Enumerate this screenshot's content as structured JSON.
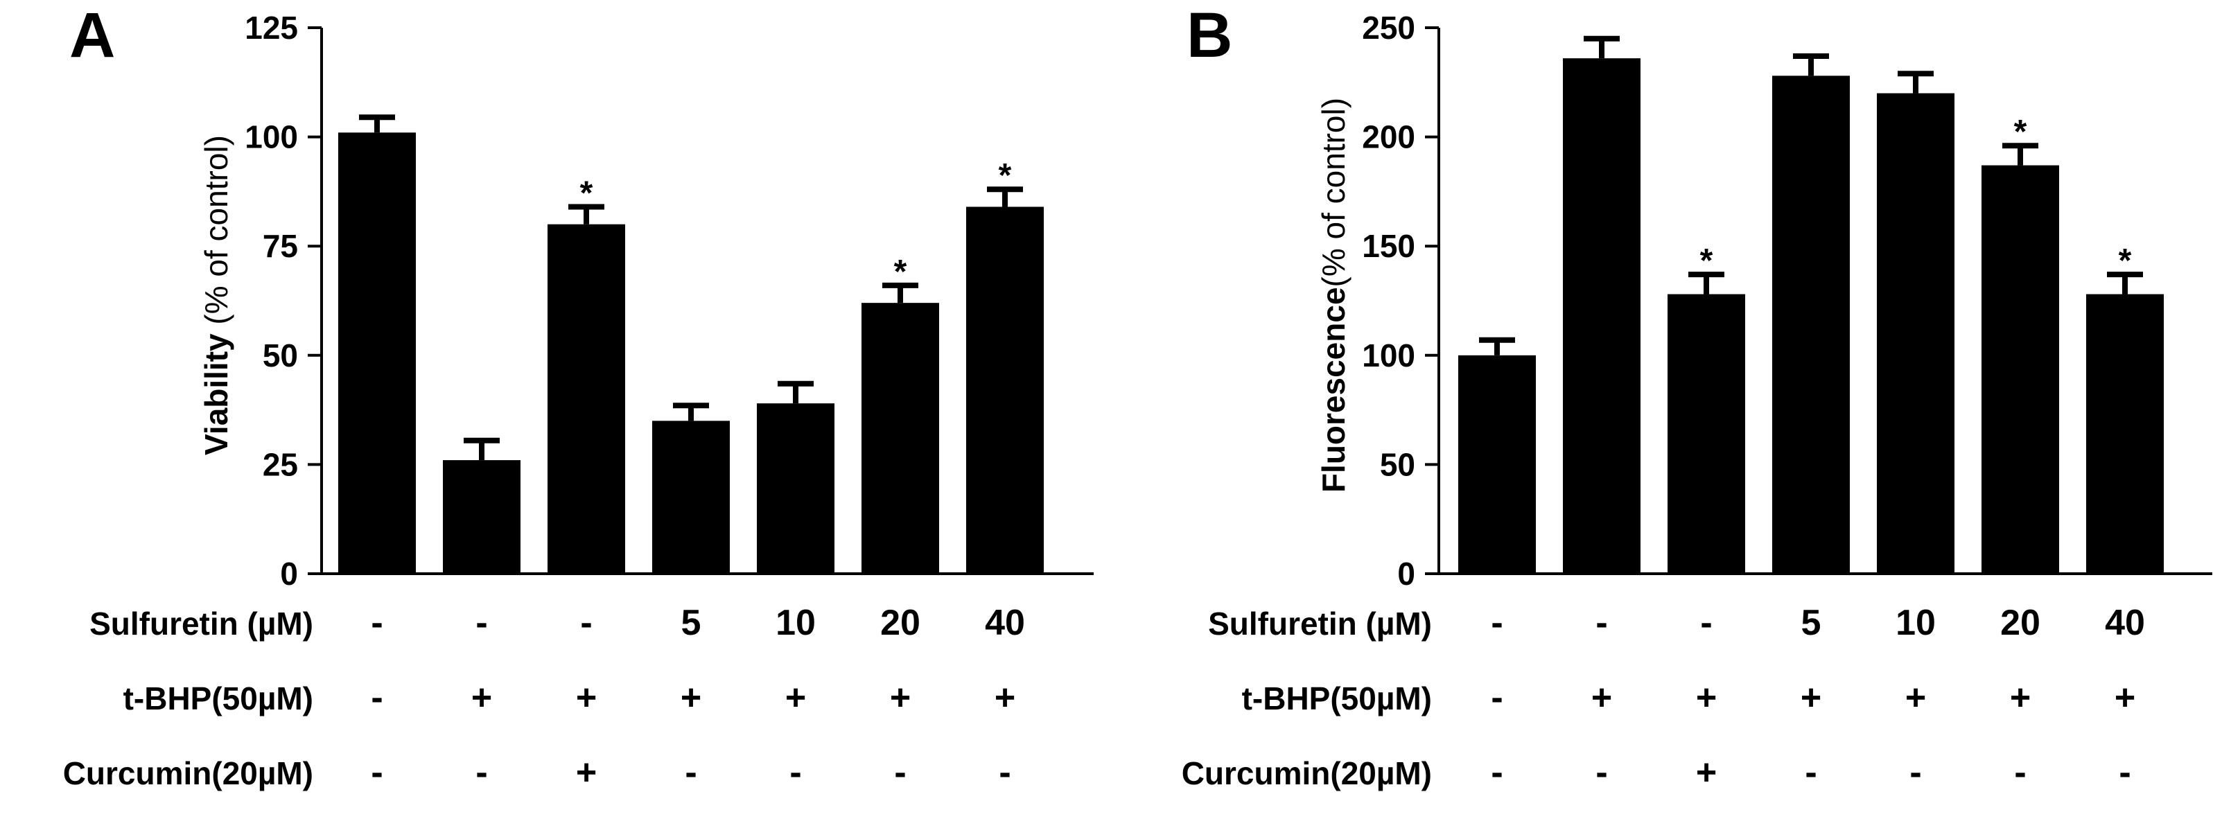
{
  "figure": {
    "panels": [
      "A",
      "B"
    ],
    "row_labels": [
      "Sulfuretin (µM)",
      "t-BHP(50µM)",
      "Curcumin(20µM)"
    ],
    "rows": {
      "sulfuretin": [
        "-",
        "-",
        "-",
        "5",
        "10",
        "20",
        "40"
      ],
      "tbhp": [
        "-",
        "+",
        "+",
        "+",
        "+",
        "+",
        "+"
      ],
      "curcumin": [
        "-",
        "-",
        "+",
        "-",
        "-",
        "-",
        "-"
      ]
    },
    "bar_color": "#000000"
  },
  "chart_data": [
    {
      "type": "bar",
      "panel": "A",
      "ylabel_bold": "Viability",
      "ylabel_rest": " (% of control)",
      "ylim": [
        0,
        125
      ],
      "yticks": [
        0,
        25,
        50,
        75,
        100,
        125
      ],
      "values": [
        101,
        26,
        80,
        35,
        39,
        62,
        84
      ],
      "errors": [
        3.5,
        4.5,
        4,
        3.5,
        4.5,
        4,
        4
      ],
      "significance": [
        "",
        "",
        "*",
        "",
        "",
        "*",
        "*"
      ],
      "grid": false
    },
    {
      "type": "bar",
      "panel": "B",
      "ylabel_bold": "Fluorescence",
      "ylabel_rest": "(% of control)",
      "ylim": [
        0,
        250
      ],
      "yticks": [
        0,
        50,
        100,
        150,
        200,
        250
      ],
      "values": [
        100,
        236,
        128,
        228,
        220,
        187,
        128
      ],
      "errors": [
        7,
        9,
        9,
        9,
        9,
        9,
        9
      ],
      "significance": [
        "",
        "",
        "*",
        "",
        "",
        "*",
        "*"
      ],
      "grid": false
    }
  ]
}
